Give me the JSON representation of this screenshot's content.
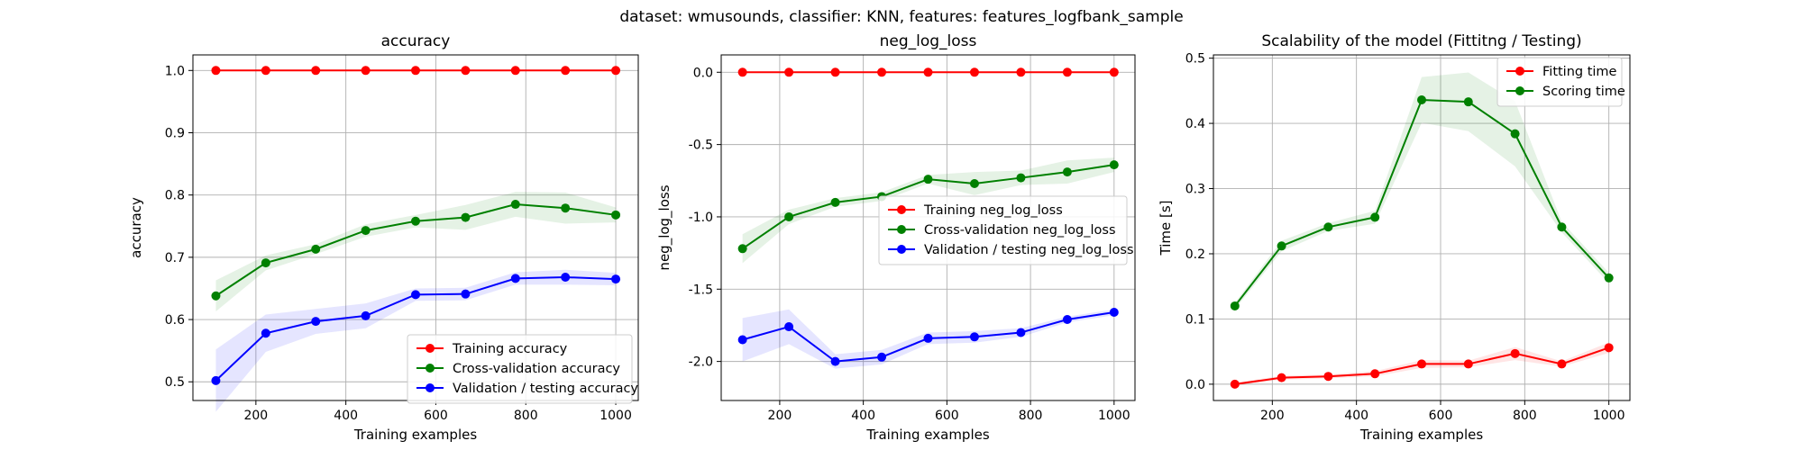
{
  "suptitle": "dataset: wmusounds, classifier: KNN, features: features_logfbank_sample",
  "chart_data": [
    {
      "type": "line",
      "title": "accuracy",
      "xlabel": "Training examples",
      "ylabel": "accuracy",
      "xlim": [
        60,
        1050
      ],
      "ylim": [
        0.47,
        1.025
      ],
      "xticks": [
        200,
        400,
        600,
        800,
        1000
      ],
      "yticks": [
        0.5,
        0.6,
        0.7,
        0.8,
        0.9,
        1.0
      ],
      "ytick_decimals": 1,
      "grid": true,
      "legend_position": "lower-right",
      "x": [
        111,
        222,
        333,
        444,
        555,
        666,
        777,
        888,
        1000
      ],
      "series": [
        {
          "name": "Training accuracy",
          "color": "#ff0000",
          "values": [
            1.0,
            1.0,
            1.0,
            1.0,
            1.0,
            1.0,
            1.0,
            1.0,
            1.0
          ],
          "band": [
            0,
            0,
            0,
            0,
            0,
            0,
            0,
            0,
            0
          ]
        },
        {
          "name": "Cross-validation accuracy",
          "color": "#008000",
          "values": [
            0.638,
            0.691,
            0.713,
            0.743,
            0.758,
            0.764,
            0.785,
            0.779,
            0.768
          ],
          "band": [
            0.025,
            0.012,
            0.008,
            0.01,
            0.01,
            0.02,
            0.02,
            0.025,
            0.012
          ]
        },
        {
          "name": "Validation / testing accuracy",
          "color": "#0000ff",
          "values": [
            0.502,
            0.578,
            0.597,
            0.606,
            0.64,
            0.641,
            0.666,
            0.668,
            0.665
          ],
          "band": [
            0.05,
            0.03,
            0.02,
            0.02,
            0.01,
            0.01,
            0.01,
            0.012,
            0.01
          ]
        }
      ]
    },
    {
      "type": "line",
      "title": "neg_log_loss",
      "xlabel": "Training examples",
      "ylabel": "neg_log_loss",
      "xlim": [
        60,
        1050
      ],
      "ylim": [
        -2.27,
        0.12
      ],
      "xticks": [
        200,
        400,
        600,
        800,
        1000
      ],
      "yticks": [
        -2.0,
        -1.5,
        -1.0,
        -0.5,
        0.0
      ],
      "ytick_decimals": 1,
      "grid": true,
      "legend_position": "center-right",
      "x": [
        111,
        222,
        333,
        444,
        555,
        666,
        777,
        888,
        1000
      ],
      "series": [
        {
          "name": "Training neg_log_loss",
          "color": "#ff0000",
          "values": [
            0,
            0,
            0,
            0,
            0,
            0,
            0,
            0,
            0
          ],
          "band": [
            0,
            0,
            0,
            0,
            0,
            0,
            0,
            0,
            0
          ]
        },
        {
          "name": "Cross-validation neg_log_loss",
          "color": "#008000",
          "values": [
            -1.22,
            -1.0,
            -0.9,
            -0.86,
            -0.74,
            -0.77,
            -0.73,
            -0.69,
            -0.64
          ],
          "band": [
            0.1,
            0.05,
            0.03,
            0.03,
            0.03,
            0.08,
            0.05,
            0.08,
            0.05
          ]
        },
        {
          "name": "Validation / testing neg_log_loss",
          "color": "#0000ff",
          "values": [
            -1.85,
            -1.76,
            -2.0,
            -1.97,
            -1.84,
            -1.83,
            -1.8,
            -1.71,
            -1.66
          ],
          "band": [
            0.15,
            0.12,
            0.05,
            0.05,
            0.04,
            0.04,
            0.03,
            0.02,
            0.02
          ]
        }
      ]
    },
    {
      "type": "line",
      "title": "Scalability of the model (Fittitng / Testing)",
      "xlabel": "Training examples",
      "ylabel": "Time [s]",
      "xlim": [
        60,
        1050
      ],
      "ylim": [
        -0.025,
        0.505
      ],
      "xticks": [
        200,
        400,
        600,
        800,
        1000
      ],
      "yticks": [
        0.0,
        0.1,
        0.2,
        0.3,
        0.4,
        0.5
      ],
      "ytick_decimals": 1,
      "grid": true,
      "legend_position": "top-right",
      "x": [
        111,
        222,
        333,
        444,
        555,
        666,
        777,
        888,
        1000
      ],
      "series": [
        {
          "name": "Fitting time",
          "color": "#ff0000",
          "values": [
            0.0,
            0.01,
            0.012,
            0.016,
            0.031,
            0.031,
            0.047,
            0.031,
            0.056
          ],
          "band": [
            0.002,
            0.003,
            0.003,
            0.004,
            0.006,
            0.005,
            0.01,
            0.004,
            0.008
          ]
        },
        {
          "name": "Scoring time",
          "color": "#008000",
          "values": [
            0.12,
            0.212,
            0.241,
            0.256,
            0.436,
            0.433,
            0.384,
            0.241,
            0.163
          ],
          "band": [
            0.005,
            0.008,
            0.006,
            0.01,
            0.035,
            0.045,
            0.05,
            0.008,
            0.008
          ]
        }
      ]
    }
  ]
}
